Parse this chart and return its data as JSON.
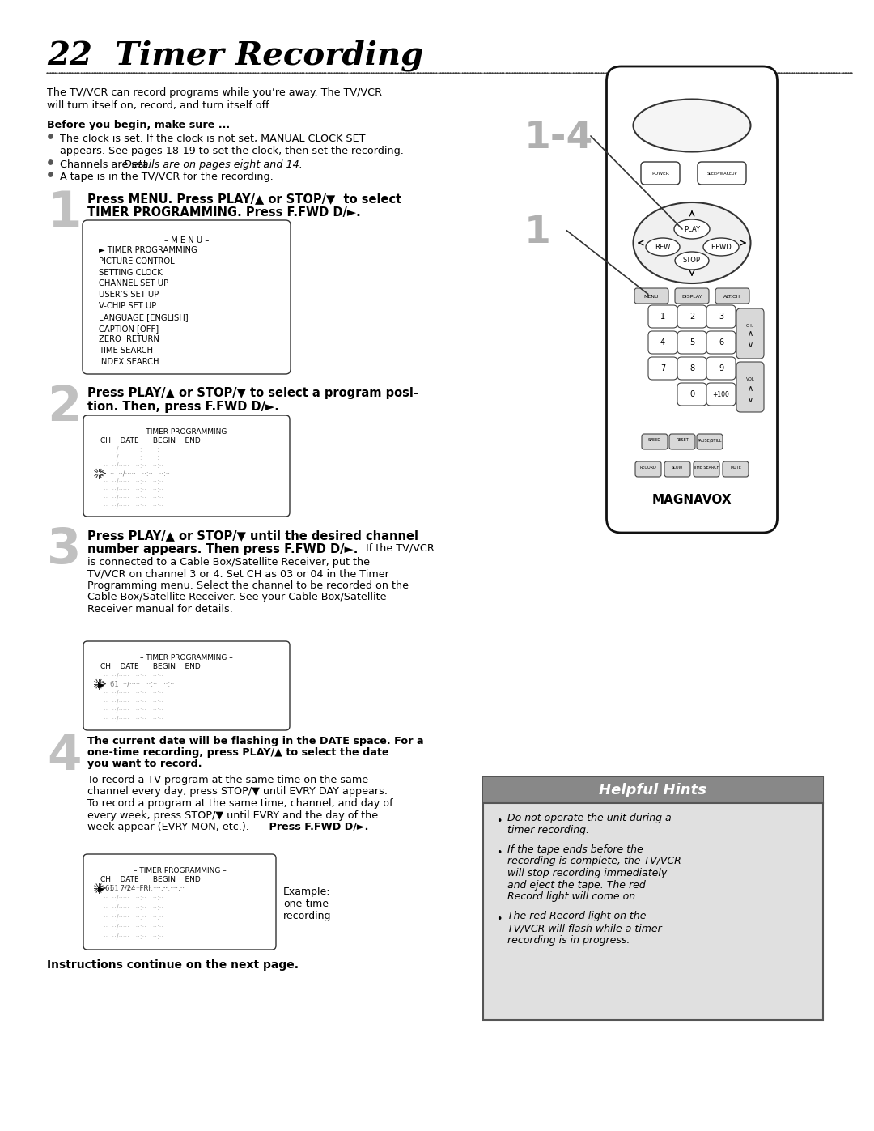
{
  "title": "22  Timer Recording",
  "bg_color": "#ffffff",
  "intro1": "The TV/VCR can record programs while you’re away. The TV/VCR",
  "intro2": "will turn itself on, record, and turn itself off.",
  "before_begin": "Before you begin, make sure ...",
  "b1a": "The clock is set. If the clock is not set, MANUAL CLOCK SET",
  "b1b": "appears. See pages 18-19 to set the clock, then set the recording.",
  "b2a": "Channels are set. ",
  "b2b": "Details are on pages eight and 14.",
  "b3": "A tape is in the TV/VCR for the recording.",
  "s1a": "Press MENU. Press PLAY/▲ or STOP/▼  to select",
  "s1b": "TIMER PROGRAMMING. Press F.FWD D/►.",
  "menu_title": "– M E N U –",
  "menu_items": [
    "► TIMER PROGRAMMING",
    "PICTURE CONTROL",
    "SETTING CLOCK",
    "CHANNEL SET UP",
    "USER’S SET UP",
    "V-CHIP SET UP",
    "LANGUAGE [ENGLISH]",
    "CAPTION [OFF]",
    "ZERO  RETURN",
    "TIME SEARCH",
    "INDEX SEARCH"
  ],
  "s2a": "Press PLAY/▲ or STOP/▼ to select a program posi-",
  "s2b": "tion. Then, press F.FWD D/►.",
  "s3a": "Press PLAY/▲ or STOP/▼ until the desired channel",
  "s3b": "number appears. Then press F.FWD D/►.",
  "s3_inline_bold": "number appears. Then press F.FWD D/►.",
  "s3_body1": "is connected to a Cable Box/Satellite Receiver, put the",
  "s3_body2": "TV/VCR on channel 3 or 4. Set CH as 03 or 04 in the Timer",
  "s3_body3": "Programming menu. Select the channel to be recorded on the",
  "s3_body4": "Cable Box/Satellite Receiver. See your Cable Box/Satellite",
  "s3_body5": "Receiver manual for details.",
  "s4bold1": "The current date will be flashing in the DATE space. For a",
  "s4bold2": "one-time recording, press PLAY/▲ to select the date",
  "s4bold3": "you want to record.",
  "s4body1": "To record a TV program at the same time on the same",
  "s4body2": "channel every day, press STOP/▼ until EVRY DAY appears.",
  "s4body3": "To record a program at the same time, channel, and day of",
  "s4body4": "every week, press STOP/▼ until EVRY and the day of the",
  "s4body5": "week appear (EVRY MON, etc.).",
  "s4press": "Press F.FWD D/►.",
  "instr_cont": "Instructions continue on the next page.",
  "hh_title": "Helpful Hints",
  "hint1": "Do not operate the unit during a\ntimer recording.",
  "hint2": "If the tape ends before the\nrecording is complete, the TV/VCR\nwill stop recording immediately\nand eject the tape. The red\nRecord light will come on.",
  "hint3": "The red Record light on the\nTV/VCR will flash while a timer\nrecording is in progress.",
  "tp_title": "– TIMER PROGRAMMING –",
  "tp_cols": "CH    DATE      BEGIN    END",
  "label14": "1-4",
  "label1": "1"
}
